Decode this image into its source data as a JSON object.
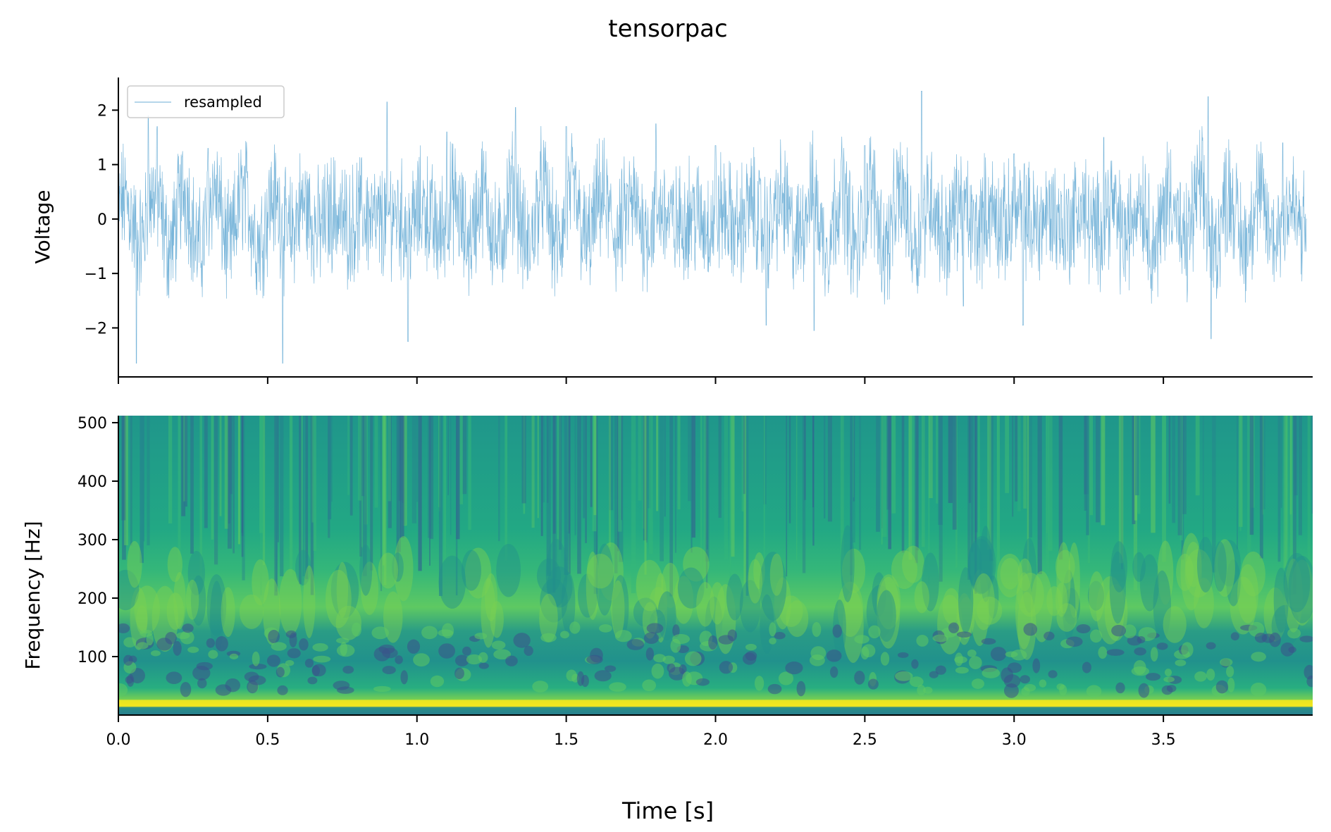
{
  "figure": {
    "title": "tensorpac",
    "xlabel": "Time [s]"
  },
  "chart_data": [
    {
      "type": "line",
      "ylabel": "Voltage",
      "xlim": [
        0,
        4.0
      ],
      "ylim": [
        -2.9,
        2.6
      ],
      "x_ticks": [
        0.0,
        0.5,
        1.0,
        1.5,
        2.0,
        2.5,
        3.0,
        3.5
      ],
      "x_tick_labels_shown": false,
      "y_ticks": [
        -2,
        -1,
        0,
        1,
        2
      ],
      "y_tick_labels": [
        "−2",
        "−1",
        "0",
        "1",
        "2"
      ],
      "legend": {
        "position": "upper-left",
        "entries": [
          "resampled"
        ]
      },
      "series": [
        {
          "name": "resampled",
          "color": "#6baed6",
          "description_of_shape": "dense noisy oscillation around 0 with roughly 10 Hz bursts",
          "sampled_x": [
            0.0,
            0.06,
            0.1,
            0.13,
            0.3,
            0.55,
            0.9,
            0.97,
            1.1,
            1.33,
            1.5,
            1.8,
            2.0,
            2.17,
            2.33,
            2.5,
            2.69,
            2.83,
            3.0,
            3.03,
            3.3,
            3.65,
            3.66,
            3.9,
            3.98
          ],
          "sampled_y": [
            0.0,
            -2.65,
            1.9,
            1.7,
            1.3,
            -2.65,
            2.15,
            -2.25,
            1.6,
            2.05,
            1.7,
            1.75,
            1.35,
            -1.95,
            -2.05,
            1.35,
            2.35,
            -1.6,
            1.2,
            -1.95,
            1.5,
            2.25,
            -2.2,
            1.4,
            0.0
          ]
        }
      ]
    },
    {
      "type": "heatmap",
      "ylabel": "Frequency [Hz]",
      "xlim": [
        0,
        4.0
      ],
      "ylim": [
        0,
        512
      ],
      "x_ticks": [
        0.0,
        0.5,
        1.0,
        1.5,
        2.0,
        2.5,
        3.0,
        3.5
      ],
      "x_tick_labels": [
        "0.0",
        "0.5",
        "1.0",
        "1.5",
        "2.0",
        "2.5",
        "3.0",
        "3.5"
      ],
      "y_ticks": [
        100,
        200,
        300,
        400,
        500
      ],
      "y_tick_labels": [
        "100",
        "200",
        "300",
        "400",
        "500"
      ],
      "colormap": "viridis",
      "colormap_colors": [
        "#2c728e",
        "#21918c",
        "#28ae80",
        "#5ec962",
        "#addc30",
        "#fde725"
      ],
      "bands": [
        {
          "freq_range": [
            14,
            26
          ],
          "level": "very high",
          "color": "#f0e51f"
        },
        {
          "freq_range": [
            26,
            40
          ],
          "level": "high",
          "color": "#7ad151"
        },
        {
          "freq_range": [
            150,
            260
          ],
          "level": "medium-high",
          "color": "#4ec36b"
        },
        {
          "freq_range": [
            40,
            150
          ],
          "level": "mixed",
          "color": "#21918c"
        },
        {
          "freq_range": [
            260,
            512
          ],
          "level": "medium",
          "color": "#22a884"
        }
      ]
    }
  ]
}
